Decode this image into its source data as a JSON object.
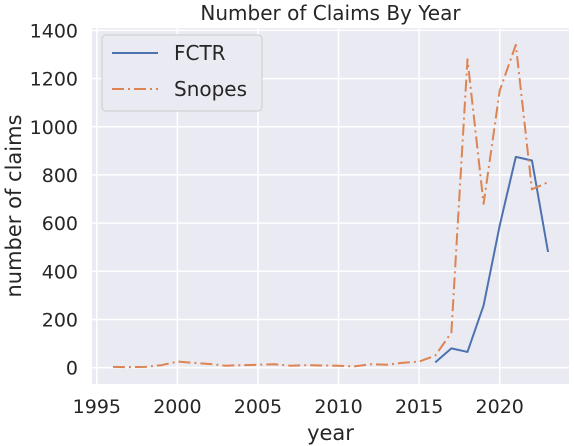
{
  "chart_data": {
    "type": "line",
    "title": "Number of Claims By Year",
    "xlabel": "year",
    "ylabel": "number of claims",
    "xlim": [
      1994.7,
      2024.3
    ],
    "ylim": [
      -68,
      1410
    ],
    "xticks": [
      1995,
      2000,
      2005,
      2010,
      2015,
      2020
    ],
    "yticks": [
      0,
      200,
      400,
      600,
      800,
      1000,
      1200,
      1400
    ],
    "grid": true,
    "legend_position": "top-left",
    "series": [
      {
        "name": "FCTR",
        "color": "#4c72b0",
        "style": "solid",
        "x": [
          2016,
          2017,
          2018,
          2019,
          2020,
          2021,
          2022,
          2023
        ],
        "y": [
          22,
          80,
          65,
          258,
          590,
          875,
          860,
          480
        ]
      },
      {
        "name": "Snopes",
        "color": "#dd8452",
        "style": "dashdot",
        "x": [
          1996,
          1997,
          1998,
          1999,
          2000,
          2001,
          2002,
          2003,
          2004,
          2005,
          2006,
          2007,
          2008,
          2009,
          2010,
          2011,
          2012,
          2013,
          2014,
          2015,
          2016,
          2017,
          2018,
          2019,
          2020,
          2021,
          2022,
          2023
        ],
        "y": [
          3,
          2,
          3,
          10,
          25,
          20,
          15,
          8,
          10,
          12,
          14,
          8,
          10,
          9,
          8,
          5,
          14,
          12,
          20,
          25,
          50,
          145,
          1280,
          680,
          1150,
          1340,
          740,
          770
        ]
      }
    ]
  }
}
